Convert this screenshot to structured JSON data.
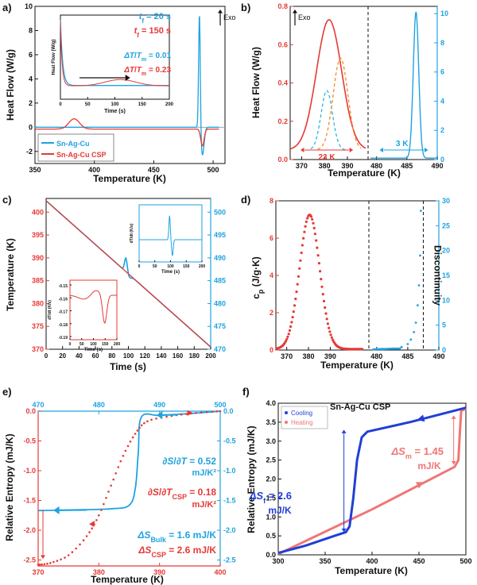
{
  "colors": {
    "blue": "#1ea3e0",
    "red": "#e53935",
    "dblue": "#1f3fd6",
    "pink": "#f07676",
    "orange": "#f28c28",
    "black": "#111111",
    "grey": "#444444"
  },
  "chart_data": [
    {
      "id": "a",
      "panel_label": "a)",
      "type": "line",
      "xlabel": "Temperature (K)",
      "ylabel": "Heat Flow (W/g)",
      "xlim": [
        350,
        510
      ],
      "ylim": [
        -3,
        10
      ],
      "xticks": [
        "350",
        "400",
        "450",
        "500"
      ],
      "yticks": [
        "-2",
        "0",
        "2",
        "4",
        "6",
        "8",
        "10"
      ],
      "exo_label": "Exo",
      "series": [
        {
          "name": "Sn-Ag-Cu",
          "color_key": "blue",
          "baseline": 0,
          "peaks": [
            {
              "center": 488.5,
              "width": 0.7,
              "height": 9.8
            },
            {
              "center": 491,
              "width": 1.4,
              "height": -2.3
            }
          ]
        },
        {
          "name": "Sn-Ag-Cu CSP",
          "color_key": "red",
          "baseline": -0.15,
          "peaks": [
            {
              "center": 383,
              "width": 4.5,
              "height": 0.85
            },
            {
              "center": 491,
              "width": 1.4,
              "height": -1.4
            }
          ]
        }
      ],
      "legend": [
        "Sn-Ag-Cu",
        "Sn-Ag-Cu CSP"
      ],
      "inset": {
        "xlabel": "Time (s)",
        "ylabel": "Heat Flow (W/g)",
        "xticks": [
          "0",
          "50",
          "100",
          "150",
          "200"
        ],
        "xlim": [
          0,
          200
        ],
        "annotations": [
          {
            "text": "tf = 20 s",
            "prefix": "t",
            "sub": "f",
            "value": " = 20 s",
            "color_key": "blue"
          },
          {
            "text": "tf = 150 s",
            "prefix": "t",
            "sub": "f",
            "value": " = 150 s",
            "color_key": "red"
          },
          {
            "text": "ΔT/Tm = 0.01",
            "frac_num": "ΔT",
            "frac_den": "T",
            "frac_den_sub": "m",
            "value": " = 0.01",
            "color_key": "blue"
          },
          {
            "text": "ΔT/Tm = 0.23",
            "frac_num": "ΔT",
            "frac_den": "T",
            "frac_den_sub": "m",
            "value": " = 0.23",
            "color_key": "red"
          }
        ]
      }
    },
    {
      "id": "b",
      "panel_label": "b)",
      "type": "line",
      "xlabel": "Temperature (K)",
      "ylabel": "Heat Flow (W/g)",
      "left_xlim": [
        365,
        398
      ],
      "left_xticks": [
        "370",
        "380",
        "390"
      ],
      "right_xlim": [
        479,
        490
      ],
      "right_xticks": [
        "480",
        "485",
        "490"
      ],
      "left_ylim": [
        0,
        0.8
      ],
      "left_yticks": [
        "0.0",
        "0.2",
        "0.4",
        "0.6",
        "0.8"
      ],
      "right_ylim": [
        0,
        10.5
      ],
      "right_yticks": [
        "0",
        "2",
        "4",
        "6",
        "8",
        "10"
      ],
      "exo_label": "Exo",
      "red_peak": {
        "center": 382,
        "sigma": 5.5,
        "height": 0.68,
        "baseline": 0.05
      },
      "dashed_cyan_peak": {
        "center": 381,
        "sigma": 2.5,
        "height": 0.31
      },
      "dashed_orange_peak": {
        "center": 387,
        "sigma": 3.2,
        "height": 0.48
      },
      "blue_peak": {
        "center": 486.5,
        "sigma": 0.45,
        "height": 10
      },
      "width_annotations": [
        {
          "text": "23 K",
          "from": 369.5,
          "to": 392.5
        },
        {
          "text": "3 K",
          "from": 480.5,
          "to": 488.5
        }
      ]
    },
    {
      "id": "c",
      "panel_label": "c)",
      "type": "line",
      "xlabel": "Time (s)",
      "ylabel": "Temperature (K)",
      "xlim": [
        0,
        200
      ],
      "xticks": [
        "0",
        "20",
        "40",
        "60",
        "80",
        "100",
        "120",
        "140",
        "160",
        "180",
        "200"
      ],
      "left_ylim": [
        370,
        403
      ],
      "left_yticks": [
        "370",
        "375",
        "380",
        "385",
        "390",
        "395",
        "400"
      ],
      "right_ylim": [
        470,
        503
      ],
      "right_yticks": [
        "470",
        "475",
        "480",
        "485",
        "490",
        "495",
        "500"
      ],
      "red_line": {
        "t": [
          0,
          200
        ],
        "T": [
          402.5,
          370.5
        ]
      },
      "blue_line": {
        "t": [
          0,
          200
        ],
        "T": [
          502.5,
          470.5
        ],
        "bump_center": 97,
        "bump_height": 3.2
      },
      "inset_blue": {
        "xlabel": "Time (s)",
        "ylabel": "dT/dt (K/s)",
        "xticks": [
          "0",
          "50",
          "100",
          "150",
          "200"
        ]
      },
      "inset_red": {
        "xlabel": "Time (s)",
        "ylabel": "dT/dt (K/s)",
        "xticks": [
          "0",
          "50",
          "100",
          "150",
          "200"
        ],
        "yticks": [
          "-0.15",
          "-0.16",
          "-0.17",
          "-0.18",
          "-0.19"
        ]
      }
    },
    {
      "id": "d",
      "panel_label": "d)",
      "type": "scatter",
      "xlabel": "Temperature (K)",
      "ylabel": "cp (J/g·K)",
      "ylabel_main": "c",
      "ylabel_sub": "p",
      "ylabel_unit": " (J/g·K)",
      "left_xlim": [
        365,
        407
      ],
      "left_xticks": [
        "370",
        "380",
        "390"
      ],
      "right_xlim": [
        479,
        490
      ],
      "right_xticks": [
        "480",
        "485",
        "490"
      ],
      "left_ylim": [
        0,
        8
      ],
      "left_yticks": [
        "0",
        "2",
        "4",
        "6",
        "8"
      ],
      "right_ylim": [
        0,
        30
      ],
      "right_yticks": [
        "0",
        "5",
        "10",
        "15",
        "20",
        "25",
        "30"
      ],
      "red_peak": {
        "center": 380.5,
        "sigma": 4.6,
        "height": 7.2
      },
      "blue_rise": [
        {
          "x": 479.5,
          "y": 0.15
        },
        {
          "x": 481,
          "y": 0.2
        },
        {
          "x": 482.5,
          "y": 0.3
        },
        {
          "x": 484,
          "y": 0.6
        },
        {
          "x": 485,
          "y": 1.2
        },
        {
          "x": 485.5,
          "y": 2.1
        },
        {
          "x": 486,
          "y": 3.6
        },
        {
          "x": 486.3,
          "y": 5.5
        },
        {
          "x": 486.6,
          "y": 9
        },
        {
          "x": 486.8,
          "y": 13
        },
        {
          "x": 487,
          "y": 19
        },
        {
          "x": 487.1,
          "y": 28
        }
      ],
      "discontinuity_label": "Discontinuity",
      "discontinuity_x": 487.5
    },
    {
      "id": "e",
      "panel_label": "e)",
      "type": "line",
      "xlabel": "Temperature (K)",
      "ylabel": "Relative Entropy (mJ/K)",
      "bottom_xlim": [
        370,
        400
      ],
      "bottom_xticks": [
        "370",
        "380",
        "390",
        "400"
      ],
      "top_xlim": [
        470,
        500
      ],
      "top_xticks": [
        "470",
        "480",
        "490",
        "500"
      ],
      "left_ylim": [
        -2.6,
        0
      ],
      "left_yticks": [
        "0.0",
        "-0.5",
        "-1.0",
        "-1.5",
        "-2.0",
        "-2.5"
      ],
      "right_ylim": [
        -2.6,
        0
      ],
      "right_yticks": [
        "0.0",
        "-0.5",
        "-1.0",
        "-1.5",
        "-2.0",
        "-2.5"
      ],
      "slope_blue": {
        "text": "∂S/∂T = 0.52",
        "num": "∂S",
        "den": "∂T",
        "value": " = 0.52",
        "unit": "mJ/K²"
      },
      "slope_red": {
        "text": "∂S/∂TCSP = 0.18",
        "num": "∂S",
        "den": "∂T",
        "den_sub": "CSP",
        "value": " = 0.18",
        "unit": "mJ/K²"
      },
      "delta_bulk": {
        "text": "ΔSBulk = 1.6 mJ/K",
        "main": "ΔS",
        "sub": "Bulk",
        "value": " = 1.6 mJ/K"
      },
      "delta_csp": {
        "text": "ΔSCSP = 2.6 mJ/K",
        "main": "ΔS",
        "sub": "CSP",
        "value": " = 2.6 mJ/K"
      },
      "blue_curve": [
        {
          "x": 470,
          "y": -1.67
        },
        {
          "x": 475,
          "y": -1.66
        },
        {
          "x": 482,
          "y": -1.64
        },
        {
          "x": 485,
          "y": -1.58
        },
        {
          "x": 486,
          "y": -1.3
        },
        {
          "x": 486.5,
          "y": -0.7
        },
        {
          "x": 487,
          "y": -0.1
        },
        {
          "x": 490,
          "y": -0.07
        },
        {
          "x": 495,
          "y": -0.04
        },
        {
          "x": 500,
          "y": 0
        }
      ],
      "red_curve": [
        {
          "x": 370,
          "y": -2.58
        },
        {
          "x": 372,
          "y": -2.55
        },
        {
          "x": 375,
          "y": -2.42
        },
        {
          "x": 378,
          "y": -2.1
        },
        {
          "x": 380,
          "y": -1.75
        },
        {
          "x": 382,
          "y": -1.25
        },
        {
          "x": 384,
          "y": -0.75
        },
        {
          "x": 386,
          "y": -0.38
        },
        {
          "x": 388,
          "y": -0.17
        },
        {
          "x": 392,
          "y": -0.08
        },
        {
          "x": 396,
          "y": -0.03
        },
        {
          "x": 400,
          "y": 0
        }
      ]
    },
    {
      "id": "f",
      "panel_label": "f)",
      "type": "line",
      "title": "Sn-Ag-Cu CSP",
      "xlabel": "Temperature (K)",
      "ylabel": "Relative Entropy (mJ/K)",
      "xlim": [
        300,
        500
      ],
      "xticks": [
        "300",
        "350",
        "400",
        "450",
        "500"
      ],
      "ylim": [
        0,
        4
      ],
      "yticks": [
        "0.0",
        "0.5",
        "1.0",
        "1.5",
        "2.0",
        "2.5",
        "3.0",
        "3.5",
        "4.0"
      ],
      "legend": [
        "Cooling",
        "Heating"
      ],
      "delta_f": {
        "text": "ΔSf = 2.6 mJ/K",
        "main": "ΔS",
        "sub": "f",
        "value": " = 2.6",
        "unit": "mJ/K"
      },
      "delta_m": {
        "text": "ΔSm = 1.45 mJ/K",
        "main": "ΔS",
        "sub": "m",
        "value": " = 1.45",
        "unit": "mJ/K"
      },
      "cooling": [
        {
          "x": 300,
          "y": 0.05
        },
        {
          "x": 330,
          "y": 0.25
        },
        {
          "x": 360,
          "y": 0.5
        },
        {
          "x": 372,
          "y": 0.6
        },
        {
          "x": 376,
          "y": 0.75
        },
        {
          "x": 380,
          "y": 1.5
        },
        {
          "x": 384,
          "y": 2.5
        },
        {
          "x": 389,
          "y": 3.1
        },
        {
          "x": 395,
          "y": 3.25
        },
        {
          "x": 440,
          "y": 3.5
        },
        {
          "x": 500,
          "y": 3.88
        }
      ],
      "heating": [
        {
          "x": 300,
          "y": 0.02
        },
        {
          "x": 400,
          "y": 1.2
        },
        {
          "x": 488,
          "y": 2.32
        },
        {
          "x": 492,
          "y": 2.5
        },
        {
          "x": 494,
          "y": 3.4
        },
        {
          "x": 495,
          "y": 3.8
        },
        {
          "x": 500,
          "y": 3.85
        }
      ]
    }
  ]
}
